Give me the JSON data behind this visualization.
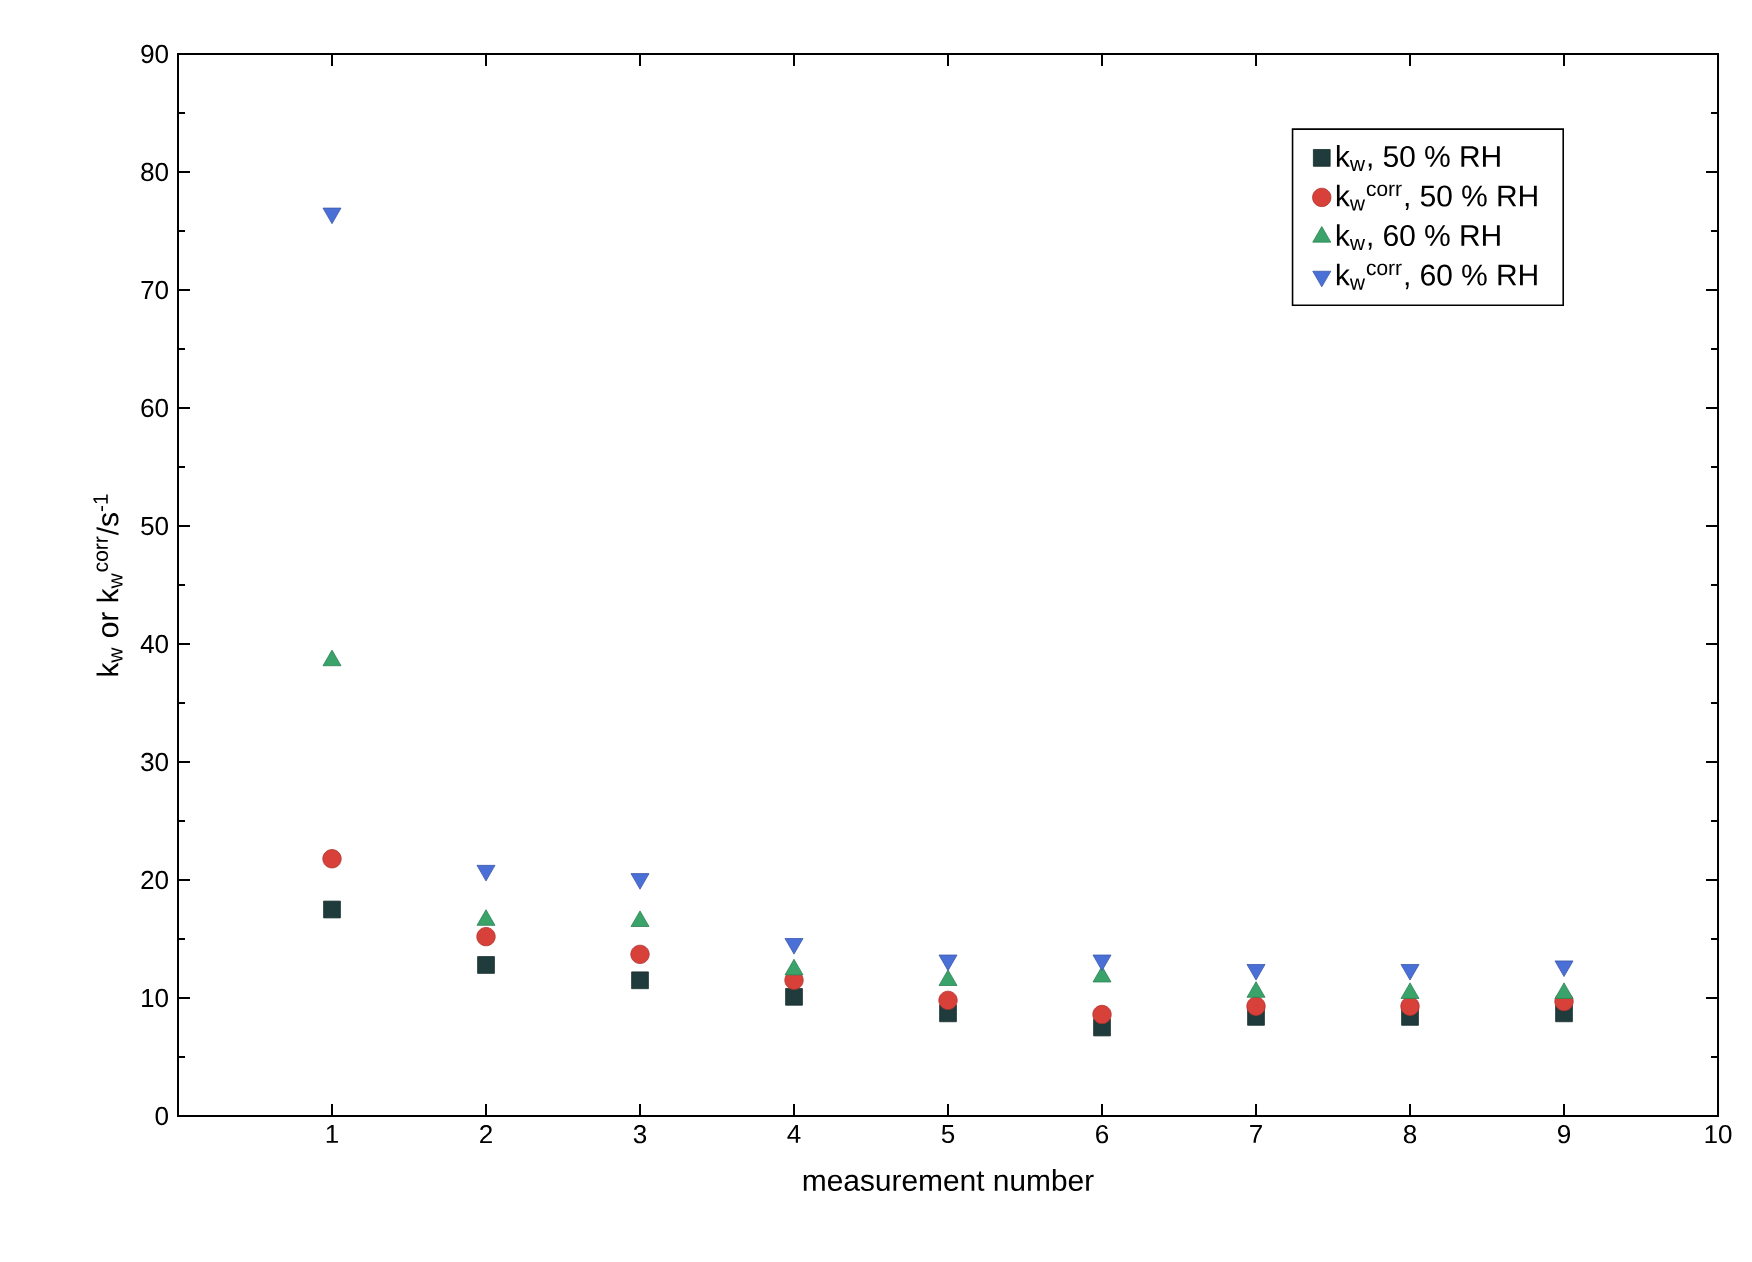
{
  "chart_data": {
    "type": "scatter",
    "xlabel": "measurement number",
    "ylabel": "k$_{w}$ or k$_{w}$$^{corr}$/s$^{-1}$",
    "x": [
      1,
      2,
      3,
      4,
      5,
      6,
      7,
      8,
      9
    ],
    "series": [
      {
        "name": "k$_{w}$, 50 % RH",
        "color": "#1f3b3b",
        "marker": "square",
        "values": [
          17.5,
          12.8,
          11.5,
          10.1,
          8.7,
          7.5,
          8.4,
          8.4,
          8.7
        ]
      },
      {
        "name": "k$_{w}$$^{corr}$, 50 % RH",
        "color": "#d8403a",
        "marker": "circle",
        "values": [
          21.8,
          15.2,
          13.7,
          11.5,
          9.8,
          8.6,
          9.3,
          9.3,
          9.7
        ]
      },
      {
        "name": "k$_{w}$, 60 % RH",
        "color": "#3aa36a",
        "marker": "triangle",
        "values": [
          38.6,
          16.6,
          16.5,
          12.4,
          11.5,
          11.8,
          10.5,
          10.4,
          10.4
        ]
      },
      {
        "name": "k$_{w}$$^{corr}$, 60 % RH",
        "color": "#4a6fd6",
        "marker": "triangle-down",
        "values": [
          76.5,
          20.8,
          20.1,
          14.6,
          13.2,
          13.2,
          12.4,
          12.4,
          12.7
        ]
      }
    ],
    "xlim": [
      0,
      10
    ],
    "xticks": [
      1,
      2,
      3,
      4,
      5,
      6,
      7,
      8,
      9,
      10
    ],
    "ylim": [
      0,
      90
    ],
    "yticks": [
      0,
      10,
      20,
      30,
      40,
      50,
      60,
      70,
      80,
      90
    ],
    "grid": false,
    "legend": "top right"
  }
}
